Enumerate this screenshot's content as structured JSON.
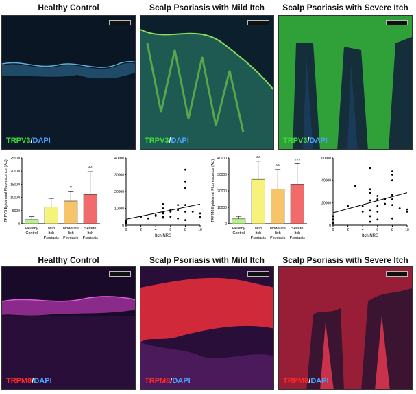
{
  "top_row": {
    "titles": [
      "Healthy Control",
      "Scalp Psoriasis with Mild Itch",
      "Scalp Psoriasis with Severe Itch"
    ],
    "marker": "TRPV3",
    "counterstain": "DAPI",
    "marker_color": "#3ddc3d"
  },
  "bottom_row": {
    "titles": [
      "Healthy Control",
      "Scalp Psoriasis with Mild Itch",
      "Scalp Psoriasis with Severe Itch"
    ],
    "marker": "TRPM8",
    "counterstain": "DAPI",
    "marker_color": "#ff2a2a"
  },
  "slash": "/",
  "chart_data": [
    {
      "type": "bar",
      "ylabel": "TRPV3 Epidermal Fluorescence (AU)",
      "ylim": [
        0,
        25000
      ],
      "yticks": [
        "0",
        "5000",
        "10000",
        "15000",
        "20000",
        "25000"
      ],
      "categories": [
        [
          "Healthy",
          "Control"
        ],
        [
          "Mild",
          "Itch",
          "Psoriasis"
        ],
        [
          "Moderate",
          "Itch",
          "Psoriasis"
        ],
        [
          "Severe",
          "Itch",
          "Psoriasis"
        ]
      ],
      "values": [
        1600,
        6400,
        8600,
        11100
      ],
      "errors": [
        1100,
        3200,
        3800,
        8700
      ],
      "significance": [
        "",
        "",
        "*",
        "**"
      ],
      "colors": [
        "#b8f28a",
        "#f6f27a",
        "#f7c46a",
        "#f26b6b"
      ]
    },
    {
      "type": "scatter",
      "xlabel": "Itch NRS",
      "xlim": [
        0,
        10
      ],
      "ylim": [
        0,
        40000
      ],
      "xticks": [
        "0",
        "2",
        "4",
        "6",
        "8",
        "10"
      ],
      "yticks": [
        "0",
        "10000",
        "20000",
        "30000",
        "40000"
      ],
      "points": [
        [
          0,
          1000
        ],
        [
          0,
          1500
        ],
        [
          0,
          2500
        ],
        [
          2,
          5000
        ],
        [
          3,
          4000
        ],
        [
          4,
          5500
        ],
        [
          4,
          6000
        ],
        [
          5,
          4500
        ],
        [
          5,
          5000
        ],
        [
          5,
          7000
        ],
        [
          5,
          8000
        ],
        [
          5,
          10000
        ],
        [
          5,
          12500
        ],
        [
          6,
          5000
        ],
        [
          6,
          8000
        ],
        [
          6,
          9000
        ],
        [
          7,
          4000
        ],
        [
          7,
          9000
        ],
        [
          7,
          12000
        ],
        [
          8,
          3000
        ],
        [
          8,
          8000
        ],
        [
          8,
          12000
        ],
        [
          8,
          22000
        ],
        [
          8,
          26000
        ],
        [
          8,
          33000
        ],
        [
          9,
          8000
        ],
        [
          10,
          5000
        ],
        [
          10,
          7000
        ]
      ],
      "trend": [
        [
          0,
          3500
        ],
        [
          10,
          12500
        ]
      ]
    },
    {
      "type": "bar",
      "ylabel": "TRPM8 Epidermal Fluorescence (AU)",
      "ylim": [
        0,
        40000
      ],
      "yticks": [
        "0",
        "10000",
        "20000",
        "30000",
        "40000"
      ],
      "categories": [
        [
          "Healthy",
          "Control"
        ],
        [
          "Mild",
          "Itch",
          "Psoriasis"
        ],
        [
          "Moderate",
          "Itch",
          "Psoriasis"
        ],
        [
          "Severe",
          "Itch",
          "Psoriasis"
        ]
      ],
      "values": [
        3000,
        27000,
        21000,
        24000
      ],
      "errors": [
        1500,
        11000,
        12000,
        12500
      ],
      "significance": [
        "",
        "**",
        "**",
        "***"
      ],
      "colors": [
        "#b8f28a",
        "#f6f27a",
        "#f7c46a",
        "#f26b6b"
      ]
    },
    {
      "type": "scatter",
      "xlabel": "Itch NRS",
      "xlim": [
        0,
        10
      ],
      "ylim": [
        0,
        60000
      ],
      "xticks": [
        "0",
        "2",
        "4",
        "6",
        "8",
        "10"
      ],
      "yticks": [
        "0",
        "20000",
        "40000",
        "60000"
      ],
      "points": [
        [
          0,
          2000
        ],
        [
          0,
          5000
        ],
        [
          0,
          8000
        ],
        [
          2,
          17000
        ],
        [
          3,
          35000
        ],
        [
          4,
          12000
        ],
        [
          4,
          17000
        ],
        [
          5,
          3000
        ],
        [
          5,
          8000
        ],
        [
          5,
          13000
        ],
        [
          5,
          22000
        ],
        [
          5,
          29000
        ],
        [
          5,
          32000
        ],
        [
          5,
          51000
        ],
        [
          6,
          5000
        ],
        [
          6,
          12000
        ],
        [
          6,
          17000
        ],
        [
          6,
          23000
        ],
        [
          6,
          26000
        ],
        [
          7,
          19000
        ],
        [
          7,
          23000
        ],
        [
          8,
          6000
        ],
        [
          8,
          18000
        ],
        [
          8,
          23000
        ],
        [
          8,
          27000
        ],
        [
          8,
          40000
        ],
        [
          8,
          45000
        ],
        [
          8,
          48000
        ],
        [
          9,
          15000
        ],
        [
          10,
          12000
        ],
        [
          10,
          14000
        ]
      ],
      "trend": [
        [
          0,
          11000
        ],
        [
          10,
          29000
        ]
      ]
    }
  ]
}
